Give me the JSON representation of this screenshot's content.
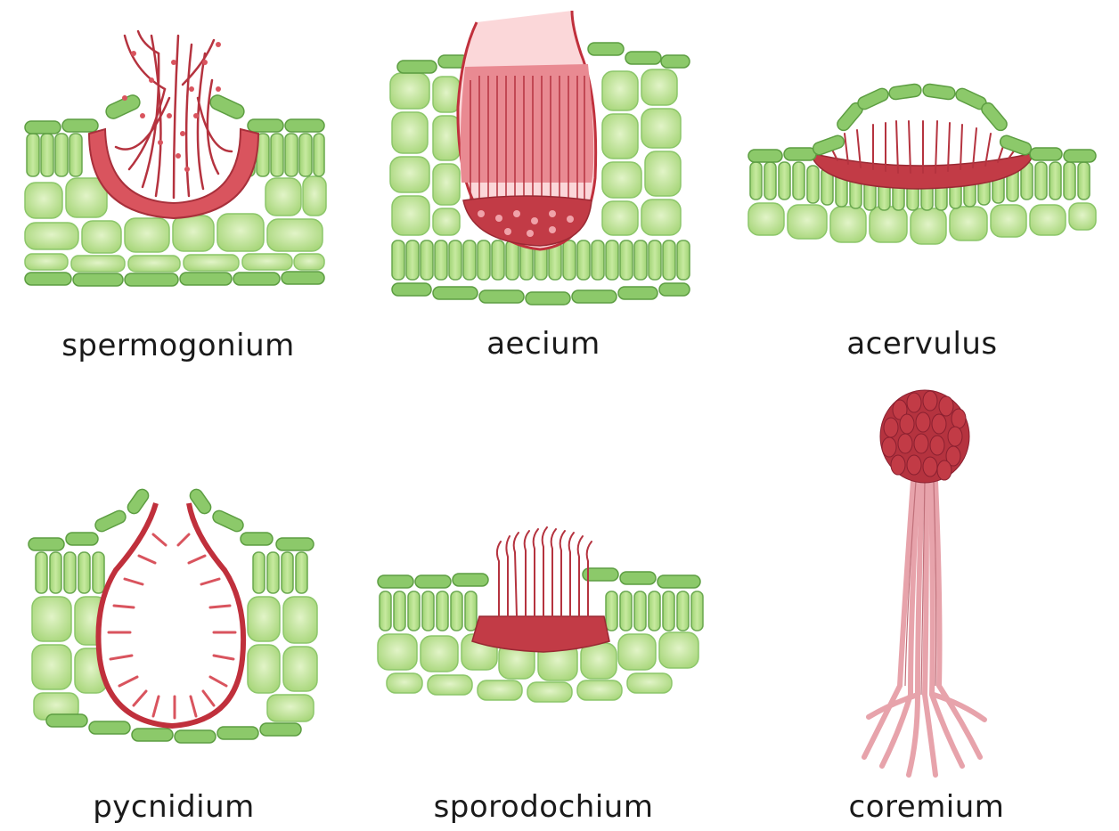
{
  "labels": {
    "spermogonium": "spermogonium",
    "aecium": "aecium",
    "acervulus": "acervulus",
    "pycnidium": "pycnidium",
    "sporodochium": "sporodochium",
    "coremium": "coremium"
  },
  "colors": {
    "cell_fill": "#b9e08f",
    "cell_light": "#d6efb6",
    "cell_stroke": "#6aa84f",
    "epidermis_fill": "#8cc96a",
    "fungus_dark": "#b5333f",
    "fungus_mid": "#d9545e",
    "fungus_light": "#e8818a",
    "hyphae_pink": "#e7a3ab"
  }
}
